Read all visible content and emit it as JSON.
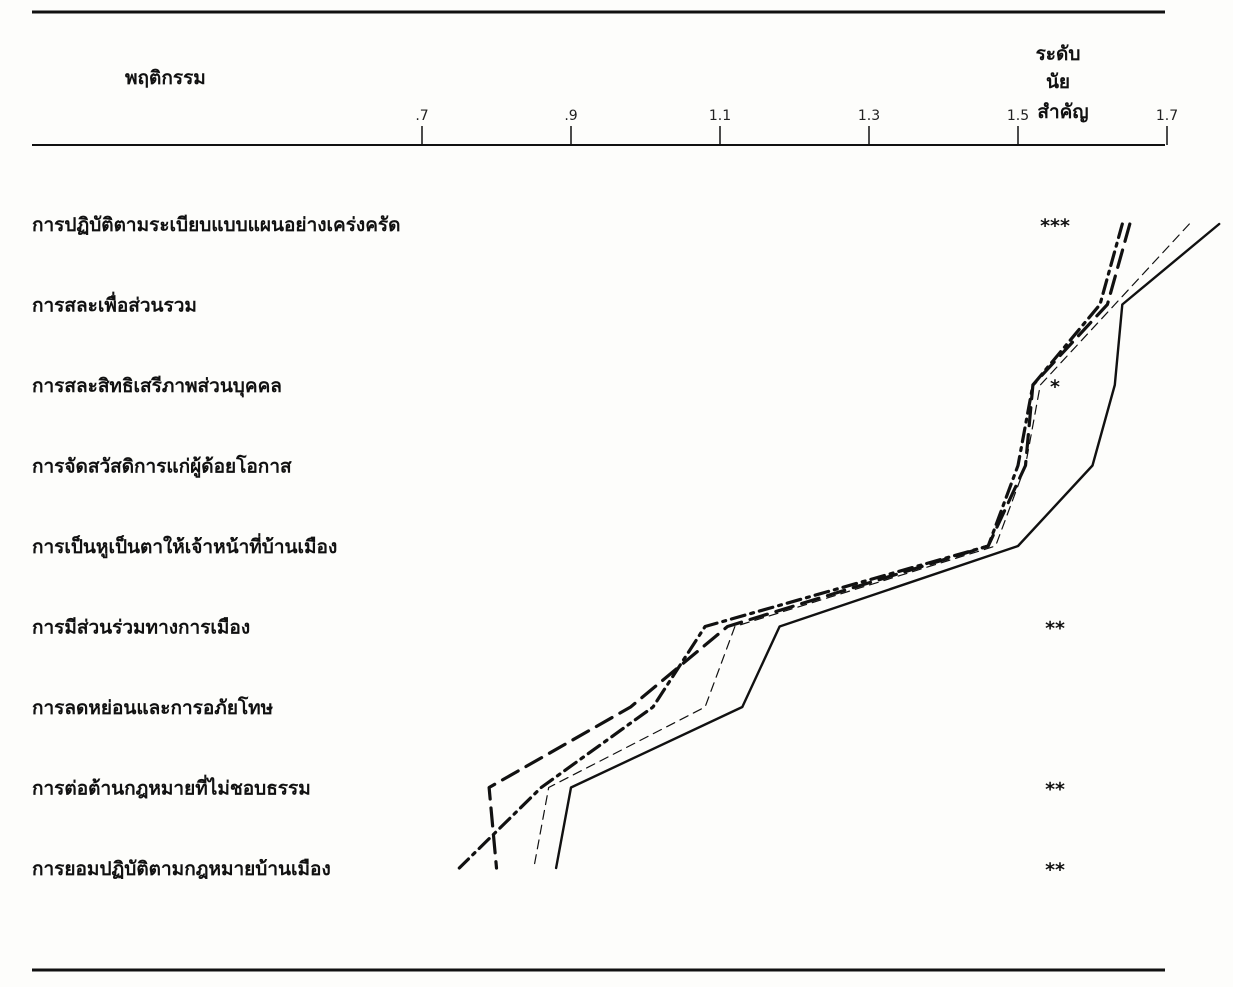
{
  "header": {
    "behavior_label": "พฤติกรรม",
    "significance_label_lines": [
      "ระดับ",
      "นัย",
      "สำคัญ"
    ]
  },
  "chart_data": {
    "type": "line",
    "orientation": "horizontal",
    "x_ticks": [
      0.7,
      0.9,
      1.1,
      1.3,
      1.5,
      1.7
    ],
    "x_tick_labels": [
      ".7",
      ".9",
      "1.1",
      "1.3",
      "1.5",
      "1.7"
    ],
    "xlim": [
      0.7,
      1.7
    ],
    "categories": [
      "การปฏิบัติตามระเบียบแบบแผนอย่างเคร่งครัด",
      "การสละเพื่อส่วนรวม",
      "การสละสิทธิเสรีภาพส่วนบุคคล",
      "การจัดสวัสดิการแก่ผู้ด้อยโอกาส",
      "การเป็นหูเป็นตาให้เจ้าหน้าที่บ้านเมือง",
      "การมีส่วนร่วมทางการเมือง",
      "การลดหย่อนและการอภัยโทษ",
      "การต่อต้านกฎหมายที่ไม่ชอบธรรม",
      "การยอมปฏิบัติตามกฎหมายบ้านเมือง"
    ],
    "significance": [
      "***",
      "",
      "*",
      "",
      "",
      "**",
      "",
      "**",
      "**"
    ],
    "series": [
      {
        "style": "solid",
        "values": [
          1.77,
          1.64,
          1.63,
          1.6,
          1.5,
          1.18,
          1.13,
          0.9,
          0.88
        ]
      },
      {
        "style": "thin-dash",
        "values": [
          1.73,
          1.63,
          1.53,
          1.51,
          1.47,
          1.12,
          1.08,
          0.87,
          0.85
        ]
      },
      {
        "style": "long-dash",
        "values": [
          1.65,
          1.62,
          1.52,
          1.51,
          1.46,
          1.11,
          0.98,
          0.79,
          0.8
        ]
      },
      {
        "style": "dash-dot",
        "values": [
          1.64,
          1.61,
          1.52,
          1.5,
          1.46,
          1.08,
          1.01,
          0.86,
          0.75
        ]
      }
    ]
  }
}
